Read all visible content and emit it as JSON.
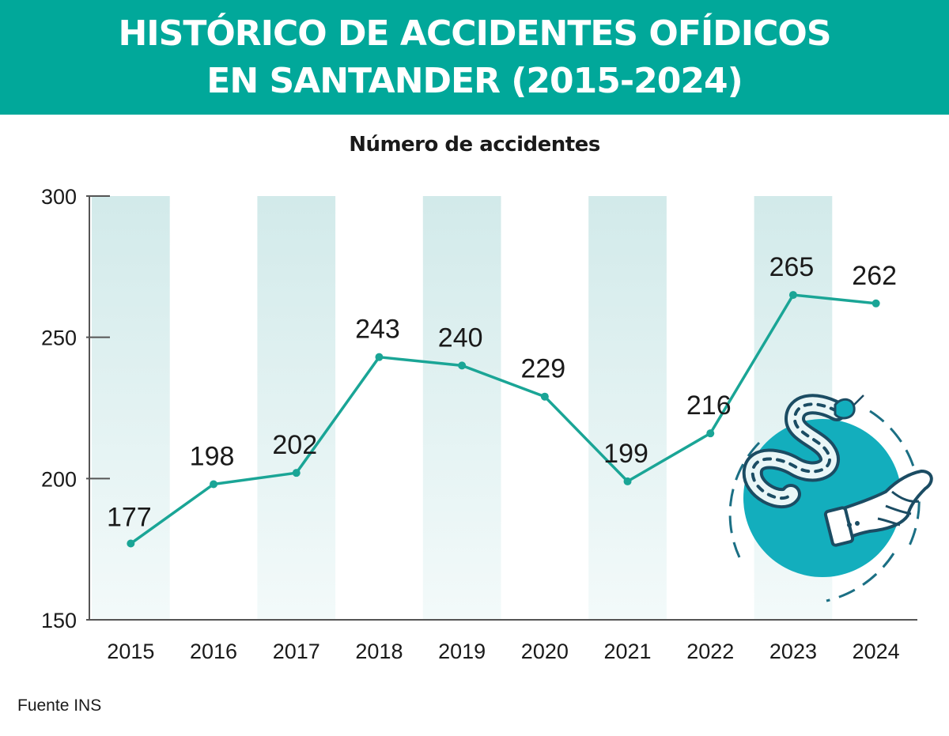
{
  "header": {
    "title_line1": "HISTÓRICO DE ACCIDENTES OFÍDICOS",
    "title_line2": "EN SANTANDER (2015-2024)"
  },
  "source": "Fuente INS",
  "colors": {
    "header_bg": "#01a89a",
    "line": "#1aa596",
    "band": "#dcefef",
    "illustration": "#13aebd",
    "text": "#1a1a1a"
  },
  "illustration": {
    "icons": [
      "snake-icon",
      "hand-icon"
    ]
  },
  "chart_data": {
    "type": "line",
    "title": "Número de accidentes",
    "xlabel": "",
    "ylabel": "",
    "categories": [
      "2015",
      "2016",
      "2017",
      "2018",
      "2019",
      "2020",
      "2021",
      "2022",
      "2023",
      "2024"
    ],
    "values": [
      177,
      198,
      202,
      243,
      240,
      229,
      199,
      216,
      265,
      262
    ],
    "data_labels": [
      "177",
      "198",
      "202",
      "243",
      "240",
      "229",
      "199",
      "216",
      "265",
      "262"
    ],
    "ylim": [
      150,
      300
    ],
    "yticks": [
      150,
      200,
      250,
      300
    ],
    "ytick_labels": [
      "150",
      "200",
      "250",
      "300"
    ],
    "grid": false,
    "legend": "none",
    "alternating_bands": true
  }
}
